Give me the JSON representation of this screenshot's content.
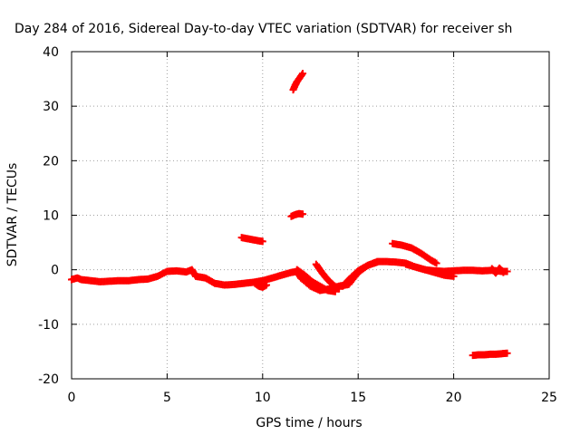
{
  "chart_data": {
    "type": "scatter",
    "title": "Day 284 of 2016, Sidereal Day-to-day VTEC variation (SDTVAR) for receiver sh",
    "xlabel": "GPS time / hours",
    "ylabel": "SDTVAR / TECUs",
    "xlim": [
      0,
      25
    ],
    "ylim": [
      -20,
      40
    ],
    "xticks": [
      "0",
      "5",
      "10",
      "15",
      "20",
      "25"
    ],
    "yticks": [
      "-20",
      "-10",
      "0",
      "10",
      "20",
      "30",
      "40"
    ],
    "grid": true,
    "marker_color": "#ff0000",
    "series": [
      {
        "x": [
          0.0,
          0.3,
          0.5,
          1.0,
          1.5,
          2.0,
          2.5,
          3.0,
          3.5,
          4.0,
          4.5,
          5.0,
          5.5,
          6.0,
          6.3,
          6.5,
          7.0,
          7.5,
          8.0,
          8.5,
          9.0,
          9.5,
          10.0,
          10.5,
          11.0,
          11.5,
          11.8,
          12.0,
          12.5,
          13.0,
          13.5,
          14.0,
          14.5,
          15.0,
          15.5,
          16.0,
          16.5,
          17.0,
          17.5,
          18.0,
          18.5,
          19.0,
          19.5,
          20.0,
          20.5,
          21.0,
          21.5,
          22.0,
          22.5,
          22.8
        ],
        "y": [
          -1.8,
          -1.5,
          -1.8,
          -2.0,
          -2.2,
          -2.1,
          -2.0,
          -2.0,
          -1.8,
          -1.7,
          -1.2,
          -0.3,
          -0.2,
          -0.4,
          0.0,
          -1.2,
          -1.5,
          -2.5,
          -2.8,
          -2.7,
          -2.5,
          -2.3,
          -2.0,
          -1.5,
          -1.0,
          -0.5,
          -0.3,
          -1.5,
          -3.0,
          -3.8,
          -3.5,
          -3.0,
          -2.7,
          -0.5,
          0.8,
          1.5,
          1.5,
          1.4,
          1.2,
          0.5,
          0.0,
          -0.2,
          -0.3,
          -0.2,
          -0.1,
          -0.1,
          -0.2,
          -0.1,
          -0.3,
          -0.3
        ]
      },
      {
        "x": [
          11.8,
          12.2,
          12.6,
          13.0,
          13.4,
          13.8
        ],
        "y": [
          0.0,
          -1.0,
          -2.2,
          -3.0,
          -3.8,
          -4.0
        ]
      },
      {
        "x": [
          12.8,
          13.1,
          13.4,
          13.7,
          14.0
        ],
        "y": [
          1.0,
          -0.5,
          -1.8,
          -2.8,
          -3.5
        ]
      },
      {
        "x": [
          14.2,
          14.6,
          15.0,
          15.5,
          16.0
        ],
        "y": [
          -3.0,
          -1.5,
          -0.2,
          0.8,
          1.4
        ]
      },
      {
        "x": [
          16.8,
          17.3,
          17.8,
          18.3,
          18.8,
          19.1
        ],
        "y": [
          4.8,
          4.5,
          4.0,
          3.0,
          1.8,
          1.2
        ]
      },
      {
        "x": [
          17.5,
          18.0,
          18.5,
          19.0,
          19.5,
          20.0
        ],
        "y": [
          1.0,
          0.5,
          0.0,
          -0.5,
          -1.0,
          -1.2
        ]
      },
      {
        "x": [
          8.9,
          9.2,
          9.5,
          9.8,
          10.0
        ],
        "y": [
          5.9,
          5.7,
          5.5,
          5.3,
          5.2
        ]
      },
      {
        "x": [
          11.5,
          11.7,
          11.9,
          12.1
        ],
        "y": [
          9.8,
          10.1,
          10.3,
          10.2
        ]
      },
      {
        "x": [
          11.6,
          11.7,
          11.8,
          11.9,
          12.0,
          12.1
        ],
        "y": [
          33.0,
          33.8,
          34.5,
          35.0,
          35.5,
          36.0
        ]
      },
      {
        "x": [
          21.0,
          21.3,
          21.6,
          21.9,
          22.2,
          22.5,
          22.8
        ],
        "y": [
          -15.7,
          -15.6,
          -15.6,
          -15.5,
          -15.5,
          -15.4,
          -15.3
        ]
      },
      {
        "x": [
          9.6,
          9.8,
          10.0,
          10.2
        ],
        "y": [
          -2.5,
          -3.0,
          -3.2,
          -2.8
        ]
      },
      {
        "x": [
          22.0,
          22.2,
          22.4,
          22.6
        ],
        "y": [
          0.2,
          -0.6,
          0.3,
          -0.5
        ]
      }
    ]
  }
}
